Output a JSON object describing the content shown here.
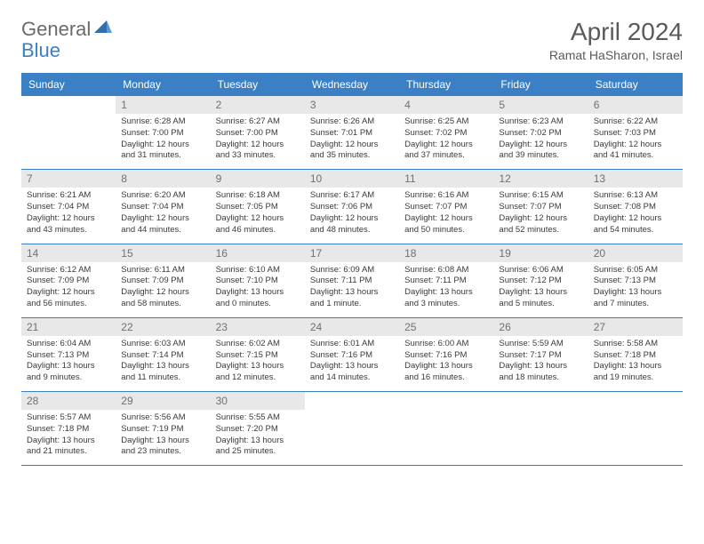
{
  "logo": {
    "text1": "General",
    "text2": "Blue",
    "icon_color": "#3b7fc4"
  },
  "title": "April 2024",
  "location": "Ramat HaSharon, Israel",
  "header_bg": "#3b7fc4",
  "daynum_bg": "#e8e8e8",
  "border_color": "#3b7fc4",
  "day_headers": [
    "Sunday",
    "Monday",
    "Tuesday",
    "Wednesday",
    "Thursday",
    "Friday",
    "Saturday"
  ],
  "weeks": [
    [
      {
        "n": "",
        "sr": "",
        "ss": "",
        "dl1": "",
        "dl2": ""
      },
      {
        "n": "1",
        "sr": "Sunrise: 6:28 AM",
        "ss": "Sunset: 7:00 PM",
        "dl1": "Daylight: 12 hours",
        "dl2": "and 31 minutes."
      },
      {
        "n": "2",
        "sr": "Sunrise: 6:27 AM",
        "ss": "Sunset: 7:00 PM",
        "dl1": "Daylight: 12 hours",
        "dl2": "and 33 minutes."
      },
      {
        "n": "3",
        "sr": "Sunrise: 6:26 AM",
        "ss": "Sunset: 7:01 PM",
        "dl1": "Daylight: 12 hours",
        "dl2": "and 35 minutes."
      },
      {
        "n": "4",
        "sr": "Sunrise: 6:25 AM",
        "ss": "Sunset: 7:02 PM",
        "dl1": "Daylight: 12 hours",
        "dl2": "and 37 minutes."
      },
      {
        "n": "5",
        "sr": "Sunrise: 6:23 AM",
        "ss": "Sunset: 7:02 PM",
        "dl1": "Daylight: 12 hours",
        "dl2": "and 39 minutes."
      },
      {
        "n": "6",
        "sr": "Sunrise: 6:22 AM",
        "ss": "Sunset: 7:03 PM",
        "dl1": "Daylight: 12 hours",
        "dl2": "and 41 minutes."
      }
    ],
    [
      {
        "n": "7",
        "sr": "Sunrise: 6:21 AM",
        "ss": "Sunset: 7:04 PM",
        "dl1": "Daylight: 12 hours",
        "dl2": "and 43 minutes."
      },
      {
        "n": "8",
        "sr": "Sunrise: 6:20 AM",
        "ss": "Sunset: 7:04 PM",
        "dl1": "Daylight: 12 hours",
        "dl2": "and 44 minutes."
      },
      {
        "n": "9",
        "sr": "Sunrise: 6:18 AM",
        "ss": "Sunset: 7:05 PM",
        "dl1": "Daylight: 12 hours",
        "dl2": "and 46 minutes."
      },
      {
        "n": "10",
        "sr": "Sunrise: 6:17 AM",
        "ss": "Sunset: 7:06 PM",
        "dl1": "Daylight: 12 hours",
        "dl2": "and 48 minutes."
      },
      {
        "n": "11",
        "sr": "Sunrise: 6:16 AM",
        "ss": "Sunset: 7:07 PM",
        "dl1": "Daylight: 12 hours",
        "dl2": "and 50 minutes."
      },
      {
        "n": "12",
        "sr": "Sunrise: 6:15 AM",
        "ss": "Sunset: 7:07 PM",
        "dl1": "Daylight: 12 hours",
        "dl2": "and 52 minutes."
      },
      {
        "n": "13",
        "sr": "Sunrise: 6:13 AM",
        "ss": "Sunset: 7:08 PM",
        "dl1": "Daylight: 12 hours",
        "dl2": "and 54 minutes."
      }
    ],
    [
      {
        "n": "14",
        "sr": "Sunrise: 6:12 AM",
        "ss": "Sunset: 7:09 PM",
        "dl1": "Daylight: 12 hours",
        "dl2": "and 56 minutes."
      },
      {
        "n": "15",
        "sr": "Sunrise: 6:11 AM",
        "ss": "Sunset: 7:09 PM",
        "dl1": "Daylight: 12 hours",
        "dl2": "and 58 minutes."
      },
      {
        "n": "16",
        "sr": "Sunrise: 6:10 AM",
        "ss": "Sunset: 7:10 PM",
        "dl1": "Daylight: 13 hours",
        "dl2": "and 0 minutes."
      },
      {
        "n": "17",
        "sr": "Sunrise: 6:09 AM",
        "ss": "Sunset: 7:11 PM",
        "dl1": "Daylight: 13 hours",
        "dl2": "and 1 minute."
      },
      {
        "n": "18",
        "sr": "Sunrise: 6:08 AM",
        "ss": "Sunset: 7:11 PM",
        "dl1": "Daylight: 13 hours",
        "dl2": "and 3 minutes."
      },
      {
        "n": "19",
        "sr": "Sunrise: 6:06 AM",
        "ss": "Sunset: 7:12 PM",
        "dl1": "Daylight: 13 hours",
        "dl2": "and 5 minutes."
      },
      {
        "n": "20",
        "sr": "Sunrise: 6:05 AM",
        "ss": "Sunset: 7:13 PM",
        "dl1": "Daylight: 13 hours",
        "dl2": "and 7 minutes."
      }
    ],
    [
      {
        "n": "21",
        "sr": "Sunrise: 6:04 AM",
        "ss": "Sunset: 7:13 PM",
        "dl1": "Daylight: 13 hours",
        "dl2": "and 9 minutes."
      },
      {
        "n": "22",
        "sr": "Sunrise: 6:03 AM",
        "ss": "Sunset: 7:14 PM",
        "dl1": "Daylight: 13 hours",
        "dl2": "and 11 minutes."
      },
      {
        "n": "23",
        "sr": "Sunrise: 6:02 AM",
        "ss": "Sunset: 7:15 PM",
        "dl1": "Daylight: 13 hours",
        "dl2": "and 12 minutes."
      },
      {
        "n": "24",
        "sr": "Sunrise: 6:01 AM",
        "ss": "Sunset: 7:16 PM",
        "dl1": "Daylight: 13 hours",
        "dl2": "and 14 minutes."
      },
      {
        "n": "25",
        "sr": "Sunrise: 6:00 AM",
        "ss": "Sunset: 7:16 PM",
        "dl1": "Daylight: 13 hours",
        "dl2": "and 16 minutes."
      },
      {
        "n": "26",
        "sr": "Sunrise: 5:59 AM",
        "ss": "Sunset: 7:17 PM",
        "dl1": "Daylight: 13 hours",
        "dl2": "and 18 minutes."
      },
      {
        "n": "27",
        "sr": "Sunrise: 5:58 AM",
        "ss": "Sunset: 7:18 PM",
        "dl1": "Daylight: 13 hours",
        "dl2": "and 19 minutes."
      }
    ],
    [
      {
        "n": "28",
        "sr": "Sunrise: 5:57 AM",
        "ss": "Sunset: 7:18 PM",
        "dl1": "Daylight: 13 hours",
        "dl2": "and 21 minutes."
      },
      {
        "n": "29",
        "sr": "Sunrise: 5:56 AM",
        "ss": "Sunset: 7:19 PM",
        "dl1": "Daylight: 13 hours",
        "dl2": "and 23 minutes."
      },
      {
        "n": "30",
        "sr": "Sunrise: 5:55 AM",
        "ss": "Sunset: 7:20 PM",
        "dl1": "Daylight: 13 hours",
        "dl2": "and 25 minutes."
      },
      {
        "n": "",
        "sr": "",
        "ss": "",
        "dl1": "",
        "dl2": ""
      },
      {
        "n": "",
        "sr": "",
        "ss": "",
        "dl1": "",
        "dl2": ""
      },
      {
        "n": "",
        "sr": "",
        "ss": "",
        "dl1": "",
        "dl2": ""
      },
      {
        "n": "",
        "sr": "",
        "ss": "",
        "dl1": "",
        "dl2": ""
      }
    ]
  ]
}
